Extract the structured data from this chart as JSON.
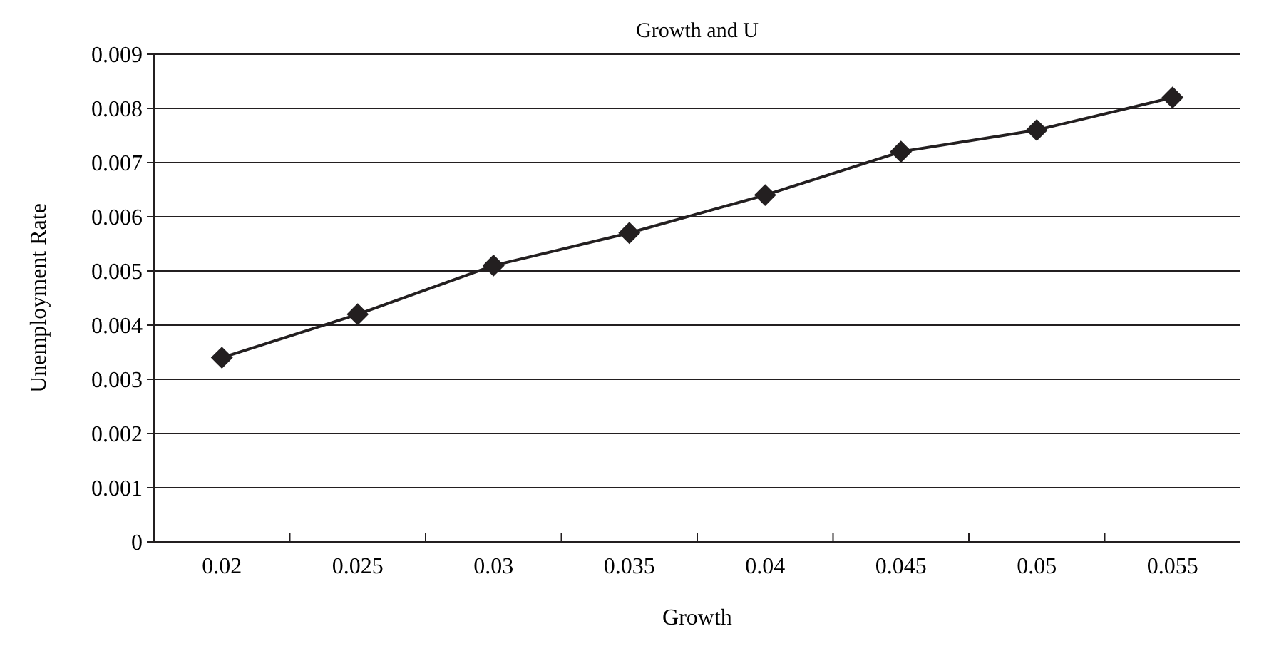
{
  "chart_data": {
    "type": "line",
    "title": "Growth and U",
    "xlabel": "Growth",
    "ylabel": "Unemployment Rate",
    "categories": [
      "0.02",
      "0.025",
      "0.03",
      "0.035",
      "0.04",
      "0.045",
      "0.05",
      "0.055"
    ],
    "series": [
      {
        "color": "#231f20",
        "values": [
          0.0034,
          0.0042,
          0.0051,
          0.0057,
          0.0064,
          0.0072,
          0.0076,
          0.0082
        ]
      }
    ],
    "ylim": [
      0,
      0.009
    ],
    "yticks": [
      0,
      0.001,
      0.002,
      0.003,
      0.004,
      0.005,
      0.006,
      0.007,
      0.008,
      0.009
    ],
    "grid": "y",
    "marker": "diamond",
    "line_style": "solid"
  }
}
